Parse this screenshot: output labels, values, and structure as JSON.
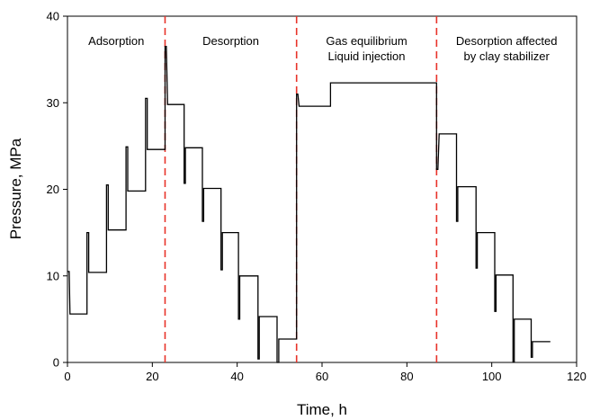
{
  "chart_data": {
    "type": "line",
    "title": "",
    "xlabel": "Time, h",
    "ylabel": "Pressure, MPa",
    "xlim": [
      0,
      120
    ],
    "ylim": [
      0,
      40
    ],
    "x_ticks": [
      0,
      20,
      40,
      60,
      80,
      100,
      120
    ],
    "y_ticks": [
      0,
      10,
      20,
      30,
      40
    ],
    "grid": false,
    "legend": "none",
    "line_color": "#000000",
    "divider_color": "#e8332a",
    "dividers_x": [
      23,
      54,
      87
    ],
    "regions": [
      {
        "label_lines": [
          "Adsorption"
        ]
      },
      {
        "label_lines": [
          "Desorption"
        ]
      },
      {
        "label_lines": [
          "Gas equilibrium",
          "Liquid injection"
        ]
      },
      {
        "label_lines": [
          "Desorption affected",
          "by clay stabilizer"
        ]
      }
    ],
    "series": [
      {
        "points": [
          [
            0,
            10.5
          ],
          [
            0.4,
            10.5
          ],
          [
            0.6,
            5.6
          ],
          [
            4.6,
            5.6
          ],
          [
            4.6,
            15.0
          ],
          [
            5.0,
            15.0
          ],
          [
            5.0,
            10.4
          ],
          [
            9.2,
            10.4
          ],
          [
            9.2,
            20.5
          ],
          [
            9.6,
            20.5
          ],
          [
            9.6,
            15.3
          ],
          [
            13.8,
            15.3
          ],
          [
            13.8,
            24.9
          ],
          [
            14.2,
            24.9
          ],
          [
            14.2,
            19.8
          ],
          [
            18.4,
            19.8
          ],
          [
            18.4,
            30.5
          ],
          [
            18.8,
            30.5
          ],
          [
            18.8,
            24.6
          ],
          [
            23.0,
            24.6
          ],
          [
            23.0,
            36.5
          ],
          [
            23.3,
            36.5
          ],
          [
            23.6,
            29.8
          ],
          [
            27.5,
            29.8
          ],
          [
            27.5,
            20.7
          ],
          [
            27.8,
            20.7
          ],
          [
            27.8,
            24.8
          ],
          [
            31.8,
            24.8
          ],
          [
            31.8,
            16.3
          ],
          [
            32.1,
            16.3
          ],
          [
            32.1,
            20.1
          ],
          [
            36.2,
            20.1
          ],
          [
            36.2,
            10.7
          ],
          [
            36.5,
            10.7
          ],
          [
            36.5,
            15.0
          ],
          [
            40.3,
            15.0
          ],
          [
            40.3,
            5.0
          ],
          [
            40.6,
            5.0
          ],
          [
            40.6,
            10.0
          ],
          [
            44.9,
            10.0
          ],
          [
            44.9,
            0.4
          ],
          [
            45.2,
            0.4
          ],
          [
            45.2,
            5.3
          ],
          [
            49.4,
            5.3
          ],
          [
            49.4,
            0.0
          ],
          [
            49.8,
            0.0
          ],
          [
            49.8,
            2.7
          ],
          [
            54.0,
            2.7
          ],
          [
            54.0,
            31.0
          ],
          [
            54.3,
            31.0
          ],
          [
            54.6,
            29.6
          ],
          [
            62.0,
            29.6
          ],
          [
            62.0,
            32.3
          ],
          [
            87.0,
            32.3
          ],
          [
            87.0,
            22.3
          ],
          [
            87.3,
            22.3
          ],
          [
            87.6,
            26.4
          ],
          [
            91.7,
            26.4
          ],
          [
            91.7,
            16.3
          ],
          [
            92.0,
            16.3
          ],
          [
            92.0,
            20.3
          ],
          [
            96.3,
            20.3
          ],
          [
            96.3,
            10.9
          ],
          [
            96.6,
            10.9
          ],
          [
            96.6,
            15.0
          ],
          [
            100.7,
            15.0
          ],
          [
            100.7,
            5.9
          ],
          [
            101.0,
            5.9
          ],
          [
            101.0,
            10.1
          ],
          [
            105.0,
            10.1
          ],
          [
            105.0,
            0.1
          ],
          [
            105.3,
            0.1
          ],
          [
            105.3,
            5.0
          ],
          [
            109.3,
            5.0
          ],
          [
            109.3,
            0.6
          ],
          [
            109.6,
            0.6
          ],
          [
            109.6,
            2.4
          ],
          [
            113.8,
            2.4
          ]
        ]
      }
    ]
  }
}
